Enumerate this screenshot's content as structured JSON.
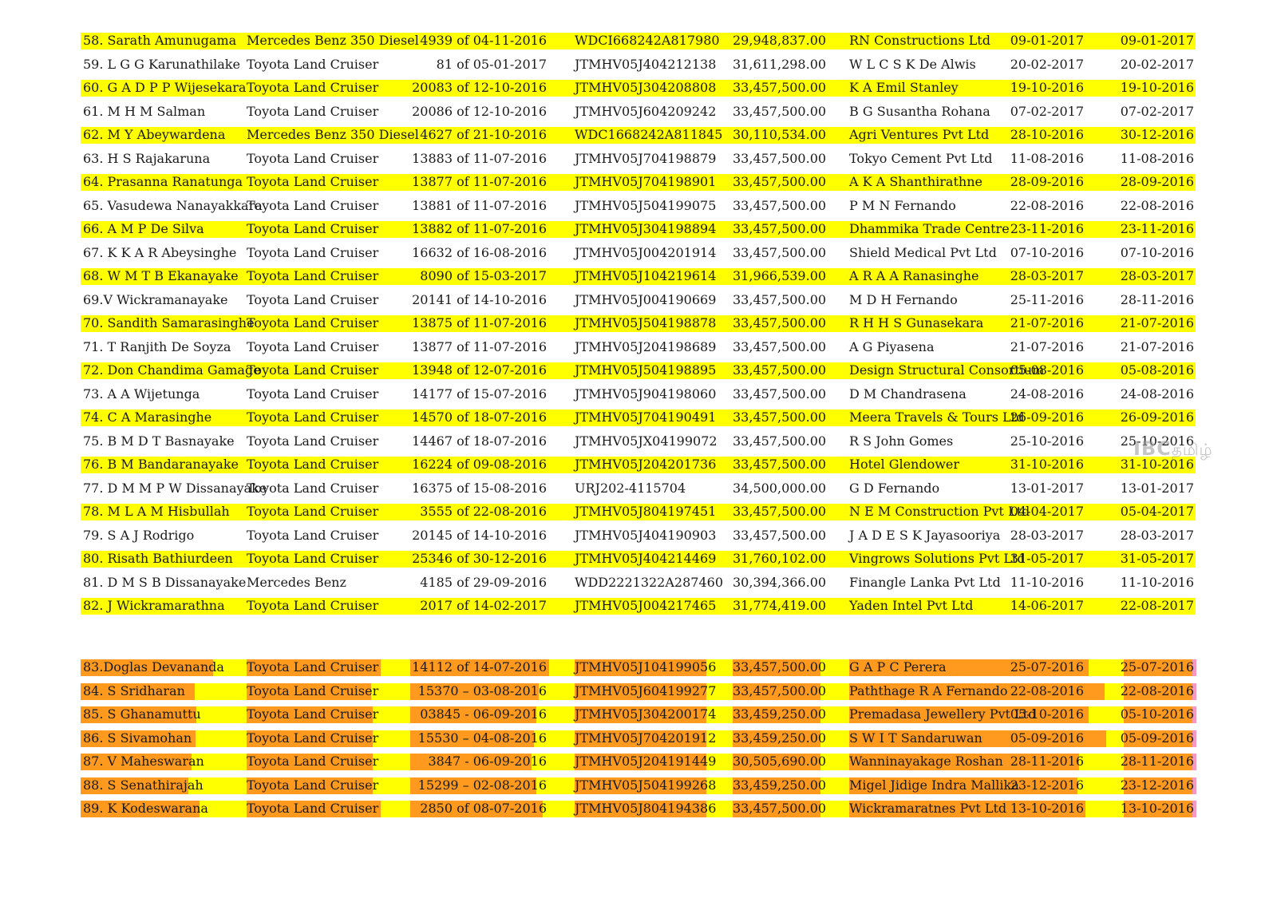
{
  "watermark": {
    "brand": "IBC",
    "script": "தமிழ்"
  },
  "rows_main": [
    {
      "name": "58. Sarath Amunugama",
      "vehicle": "Mercedes Benz 350 Diesel",
      "ref": "4939 of 04-11-2016",
      "chassis": "WDCI668242A817980",
      "value": "29,948,837.00",
      "buyer": "RN Constructions Ltd",
      "date1": "09-01-2017",
      "date2": "09-01-2017",
      "hl": "y"
    },
    {
      "name": "59. L G G  Karunathilake",
      "vehicle": "Toyota Land Cruiser",
      "ref": "81 of 05-01-2017",
      "chassis": "JTMHV05J404212138",
      "value": "31,611,298.00",
      "buyer": "W L C S K De Alwis",
      "date1": "20-02-2017",
      "date2": "20-02-2017",
      "hl": ""
    },
    {
      "name": "60. G A D P P Wijesekara",
      "vehicle": "Toyota Land Cruiser",
      "ref": "20083 of 12-10-2016",
      "chassis": "JTMHV05J304208808",
      "value": "33,457,500.00",
      "buyer": "K A Emil Stanley",
      "date1": "19-10-2016",
      "date2": "19-10-2016",
      "hl": "y"
    },
    {
      "name": "61. M H M Salman",
      "vehicle": "Toyota Land Cruiser",
      "ref": "20086 of 12-10-2016",
      "chassis": "JTMHV05J604209242",
      "value": "33,457,500.00",
      "buyer": "B G Susantha Rohana",
      "date1": "07-02-2017",
      "date2": "07-02-2017",
      "hl": ""
    },
    {
      "name": "62. M Y Abeywardena",
      "vehicle": "Mercedes Benz 350 Diesel",
      "ref": "4627 of 21-10-2016",
      "chassis": "WDC1668242A811845",
      "value": "30,110,534.00",
      "buyer": "Agri Ventures Pvt Ltd",
      "date1": "28-10-2016",
      "date2": "30-12-2016",
      "hl": "y"
    },
    {
      "name": "63. H S Rajakaruna",
      "vehicle": "Toyota Land Cruiser",
      "ref": "13883 of 11-07-2016",
      "chassis": "JTMHV05J704198879",
      "value": "33,457,500.00",
      "buyer": "Tokyo Cement Pvt Ltd",
      "date1": "11-08-2016",
      "date2": "11-08-2016",
      "hl": ""
    },
    {
      "name": "64. Prasanna Ranatunga",
      "vehicle": "Toyota Land Cruiser",
      "ref": "13877 of 11-07-2016",
      "chassis": "JTMHV05J704198901",
      "value": "33,457,500.00",
      "buyer": "A K A Shanthirathne",
      "date1": "28-09-2016",
      "date2": "28-09-2016",
      "hl": "y"
    },
    {
      "name": "65. Vasudewa Nanayakkara",
      "vehicle": "Toyota Land Cruiser",
      "ref": "13881 of 11-07-2016",
      "chassis": "JTMHV05J504199075",
      "value": "33,457,500.00",
      "buyer": "P M N Fernando",
      "date1": "22-08-2016",
      "date2": "22-08-2016",
      "hl": ""
    },
    {
      "name": "66. A M P De Silva",
      "vehicle": "Toyota Land Cruiser",
      "ref": "13882 of 11-07-2016",
      "chassis": "JTMHV05J304198894",
      "value": "33,457,500.00",
      "buyer": "Dhammika Trade Centre",
      "date1": "23-11-2016",
      "date2": "23-11-2016",
      "hl": "y"
    },
    {
      "name": "67. K K A R Abeysinghe",
      "vehicle": "Toyota Land Cruiser",
      "ref": "16632 of 16-08-2016",
      "chassis": "JTMHV05J004201914",
      "value": "33,457,500.00",
      "buyer": "Shield Medical Pvt Ltd",
      "date1": "07-10-2016",
      "date2": "07-10-2016",
      "hl": ""
    },
    {
      "name": "68. W M T B Ekanayake",
      "vehicle": "Toyota Land Cruiser",
      "ref": "8090 of 15-03-2017",
      "chassis": "JTMHV05J104219614",
      "value": "31,966,539.00",
      "buyer": "A R A A Ranasinghe",
      "date1": "28-03-2017",
      "date2": "28-03-2017",
      "hl": "y"
    },
    {
      "name": "69.V Wickramanayake",
      "vehicle": "Toyota Land Cruiser",
      "ref": "20141 of 14-10-2016",
      "chassis": "JTMHV05J004190669",
      "value": "33,457,500.00",
      "buyer": "M D H Fernando",
      "date1": "25-11-2016",
      "date2": "28-11-2016",
      "hl": ""
    },
    {
      "name": "70. Sandith Samarasinghe",
      "vehicle": "Toyota Land Cruiser",
      "ref": "13875 of 11-07-2016",
      "chassis": "JTMHV05J504198878",
      "value": "33,457,500.00",
      "buyer": "R H H S Gunasekara",
      "date1": "21-07-2016",
      "date2": "21-07-2016",
      "hl": "y"
    },
    {
      "name": "71. T Ranjith De Soyza",
      "vehicle": "Toyota Land Cruiser",
      "ref": "13877 of 11-07-2016",
      "chassis": "JTMHV05J204198689",
      "value": "33,457,500.00",
      "buyer": "A G Piyasena",
      "date1": "21-07-2016",
      "date2": "21-07-2016",
      "hl": ""
    },
    {
      "name": "72. Don Chandima Gamage",
      "vehicle": "Toyota Land Cruiser",
      "ref": "13948 of 12-07-2016",
      "chassis": "JTMHV05J504198895",
      "value": "33,457,500.00",
      "buyer": "Design Structural Consortium",
      "date1": "05-08-2016",
      "date2": "05-08-2016",
      "hl": "y"
    },
    {
      "name": "73. A A Wijetunga",
      "vehicle": "Toyota Land Cruiser",
      "ref": "14177 of 15-07-2016",
      "chassis": "JTMHV05J904198060",
      "value": "33,457,500.00",
      "buyer": "D M Chandrasena",
      "date1": "24-08-2016",
      "date2": "24-08-2016",
      "hl": ""
    },
    {
      "name": "74. C A Marasinghe",
      "vehicle": "Toyota Land Cruiser",
      "ref": "14570 of 18-07-2016",
      "chassis": "JTMHV05J704190491",
      "value": "33,457,500.00",
      "buyer": "Meera Travels & Tours Ltd",
      "date1": "26-09-2016",
      "date2": "26-09-2016",
      "hl": "y"
    },
    {
      "name": "75. B M D T Basnayake",
      "vehicle": "Toyota Land Cruiser",
      "ref": "14467 of 18-07-2016",
      "chassis": "JTMHV05JX04199072",
      "value": "33,457,500.00",
      "buyer": "R S John Gomes",
      "date1": "25-10-2016",
      "date2": "25-10-2016",
      "hl": ""
    },
    {
      "name": "76. B M Bandaranayake",
      "vehicle": "Toyota Land Cruiser",
      "ref": "16224 of 09-08-2016",
      "chassis": "JTMHV05J204201736",
      "value": "33,457,500.00",
      "buyer": "Hotel Glendower",
      "date1": "31-10-2016",
      "date2": "31-10-2016",
      "hl": "y"
    },
    {
      "name": "77. D M M P W Dissanayake",
      "vehicle": "Toyota Land Cruiser",
      "ref": "16375 of 15-08-2016",
      "chassis": "URJ202-4115704",
      "value": "34,500,000.00",
      "buyer": "G D Fernando",
      "date1": "13-01-2017",
      "date2": "13-01-2017",
      "hl": ""
    },
    {
      "name": "78. M L A M Hisbullah",
      "vehicle": "Toyota Land Cruiser",
      "ref": "3555 of 22-08-2016",
      "chassis": "JTMHV05J804197451",
      "value": "33,457,500.00",
      "buyer": "N E M Construction Pvt Ltd",
      "date1": "04-04-2017",
      "date2": "05-04-2017",
      "hl": "y"
    },
    {
      "name": "79. S A J Rodrigo",
      "vehicle": "Toyota Land Cruiser",
      "ref": "20145 of 14-10-2016",
      "chassis": "JTMHV05J404190903",
      "value": "33,457,500.00",
      "buyer": "J A D E S K Jayasooriya",
      "date1": "28-03-2017",
      "date2": "28-03-2017",
      "hl": ""
    },
    {
      "name": "80. Risath Bathiurdeen",
      "vehicle": "Toyota Land Cruiser",
      "ref": "25346 of 30-12-2016",
      "chassis": "JTMHV05J404214469",
      "value": "31,760,102.00",
      "buyer": "Vingrows Solutions Pvt Ltd",
      "date1": "31-05-2017",
      "date2": "31-05-2017",
      "hl": "y"
    },
    {
      "name": "81. D M S B Dissanayake",
      "vehicle": "Mercedes Benz",
      "ref": "4185 of 29-09-2016",
      "chassis": "WDD2221322A287460",
      "value": "30,394,366.00",
      "buyer": "Finangle Lanka Pvt Ltd",
      "date1": "11-10-2016",
      "date2": "11-10-2016",
      "hl": ""
    },
    {
      "name": "82. J Wickramarathna",
      "vehicle": "Toyota Land Cruiser",
      "ref": "2017 of  14-02-2017",
      "chassis": "JTMHV05J004217465",
      "value": "31,774,419.00",
      "buyer": "Yaden Intel Pvt Ltd",
      "date1": "14-06-2017",
      "date2": "22-08-2017",
      "hl": "y"
    }
  ],
  "rows_second": [
    {
      "name": "83.Doglas Devananda",
      "vehicle": "Toyota Land Cruiser",
      "ref": "14112 of 14-07-2016",
      "chassis": "JTMHV05J104199056",
      "value": "33,457,500.00",
      "buyer": "G A P C Perera",
      "date1": "25-07-2016",
      "date2": "25-07-2016"
    },
    {
      "name": "84. S Sridharan",
      "vehicle": "Toyota Land Cruiser",
      "ref": "15370 – 03-08-2016",
      "chassis": "JTMHV05J604199277",
      "value": "33,457,500.00",
      "buyer": "Paththage R A Fernando",
      "date1": "22-08-2016",
      "date2": "22-08-2016"
    },
    {
      "name": "85. S Ghanamuttu",
      "vehicle": "Toyota Land Cruiser",
      "ref": "03845 - 06-09-2016",
      "chassis": "JTMHV05J304200174",
      "value": "33,459,250.00",
      "buyer": "Premadasa Jewellery Pvt Ltd",
      "date1": "05-10-2016",
      "date2": "05-10-2016"
    },
    {
      "name": "86. S Sivamohan",
      "vehicle": "Toyota Land Cruiser",
      "ref": "15530 – 04-08-2016",
      "chassis": "JTMHV05J704201912",
      "value": "33,459,250.00",
      "buyer": "S W I T Sandaruwan",
      "date1": "05-09-2016",
      "date2": "05-09-2016"
    },
    {
      "name": "87. V Maheswaran",
      "vehicle": "Toyota Land Cruiser",
      "ref": "3847 - 06-09-2016",
      "chassis": "JTMHV05J204191449",
      "value": "30,505,690.00",
      "buyer": "Wanninayakage Roshan",
      "date1": "28-11-2016",
      "date2": "28-11-2016"
    },
    {
      "name": "88. S Senathirajah",
      "vehicle": "Toyota Land Cruiser",
      "ref": "15299 – 02-08-2016",
      "chassis": "JTMHV05J504199268",
      "value": "33,459,250.00",
      "buyer": "Migel Jidige Indra Mallika",
      "date1": "23-12-2016",
      "date2": "23-12-2016"
    },
    {
      "name": "89. K  Kodeswarana",
      "vehicle": "Toyota Land Cruiser",
      "ref": "2850 of 08-07-2016",
      "chassis": "JTMHV05J804194386",
      "value": "33,457,500.00",
      "buyer": "Wickramaratnes Pvt Ltd",
      "date1": "13-10-2016",
      "date2": "13-10-2016"
    }
  ],
  "colors": {
    "yellow_highlight": "#ffff00",
    "orange_highlight": "#ff9a1f",
    "pink_highlight": "#f49ac1"
  }
}
